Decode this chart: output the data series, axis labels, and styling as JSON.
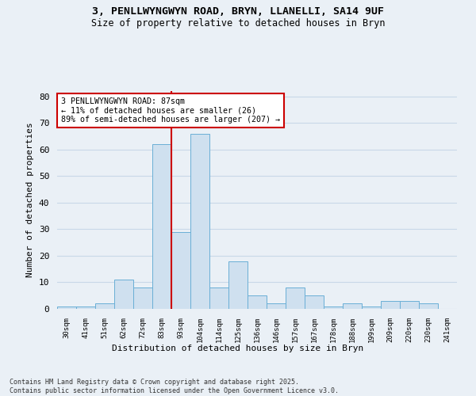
{
  "title1": "3, PENLLWYNGWYN ROAD, BRYN, LLANELLI, SA14 9UF",
  "title2": "Size of property relative to detached houses in Bryn",
  "xlabel": "Distribution of detached houses by size in Bryn",
  "ylabel": "Number of detached properties",
  "categories": [
    "30sqm",
    "41sqm",
    "51sqm",
    "62sqm",
    "72sqm",
    "83sqm",
    "93sqm",
    "104sqm",
    "114sqm",
    "125sqm",
    "136sqm",
    "146sqm",
    "157sqm",
    "167sqm",
    "178sqm",
    "188sqm",
    "199sqm",
    "209sqm",
    "220sqm",
    "230sqm",
    "241sqm"
  ],
  "values": [
    1,
    1,
    2,
    11,
    8,
    62,
    29,
    66,
    8,
    18,
    5,
    2,
    8,
    5,
    1,
    2,
    1,
    3,
    3,
    2,
    0
  ],
  "bar_color": "#cfe0ef",
  "bar_edge_color": "#6aafd6",
  "vline_x_index": 5,
  "vline_color": "#cc0000",
  "annotation_text": "3 PENLLWYNGWYN ROAD: 87sqm\n← 11% of detached houses are smaller (26)\n89% of semi-detached houses are larger (207) →",
  "annotation_box_facecolor": "#ffffff",
  "annotation_border_color": "#cc0000",
  "ylim": [
    0,
    82
  ],
  "yticks": [
    0,
    10,
    20,
    30,
    40,
    50,
    60,
    70,
    80
  ],
  "grid_color": "#c8d8e8",
  "background_color": "#eaf0f6",
  "plot_bg_color": "#eaf0f6",
  "footer_text": "Contains HM Land Registry data © Crown copyright and database right 2025.\nContains public sector information licensed under the Open Government Licence v3.0."
}
